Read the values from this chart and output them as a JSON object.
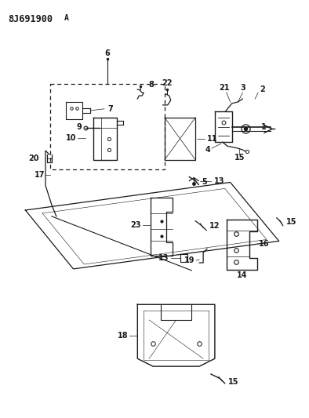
{
  "title": "8J691900 A",
  "bg": "#ffffff",
  "lc": "#1a1a1a",
  "figsize": [
    3.94,
    5.33
  ],
  "dpi": 100
}
